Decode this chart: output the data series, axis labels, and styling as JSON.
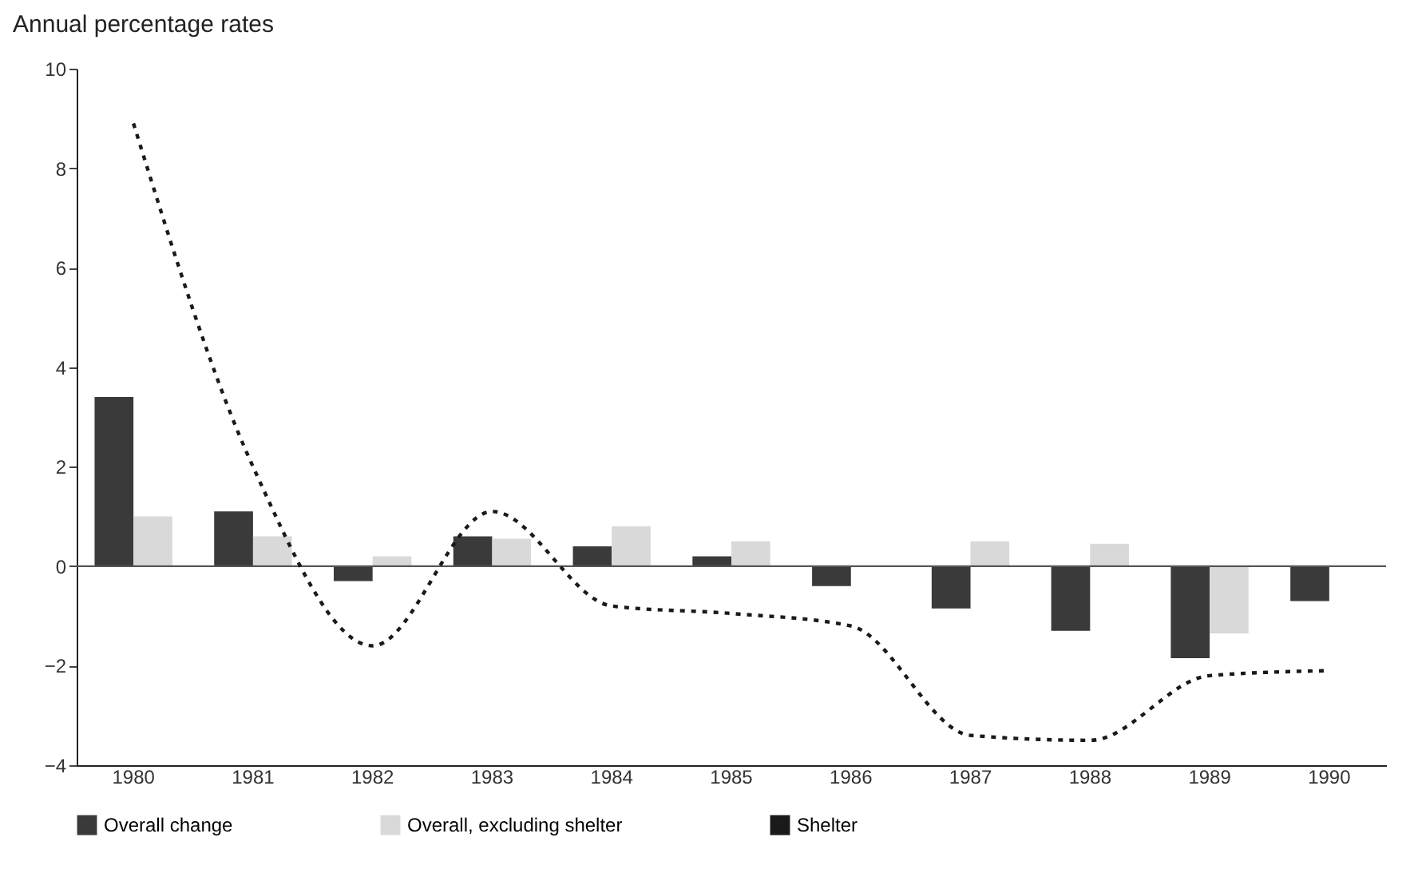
{
  "chart_data": {
    "type": "bar",
    "title": "Annual percentage rates",
    "categories": [
      "1980",
      "1981",
      "1982",
      "1983",
      "1984",
      "1985",
      "1986",
      "1987",
      "1988",
      "1989",
      "1990"
    ],
    "series": [
      {
        "name": "Overall change",
        "color": "#3a3a3a",
        "values": [
          3.4,
          1.1,
          -0.3,
          0.6,
          0.4,
          0.2,
          -0.4,
          -0.85,
          -1.3,
          -1.85,
          -0.7
        ]
      },
      {
        "name": "Overall, excluding shelter",
        "color": "#d9d9d9",
        "values": [
          1.0,
          0.6,
          0.2,
          0.55,
          0.8,
          0.5,
          0.0,
          0.5,
          0.45,
          -1.35,
          0.0
        ]
      },
      {
        "name": "Shelter",
        "type": "line",
        "color": "#1a1a1a",
        "line_style": "dotted",
        "values": [
          8.9,
          2.0,
          -1.6,
          1.1,
          -0.8,
          -0.95,
          -1.2,
          -3.4,
          -3.5,
          -2.2,
          -2.1
        ]
      }
    ],
    "ylim": [
      -4,
      10
    ],
    "yticks": [
      -4,
      -2,
      0,
      2,
      4,
      6,
      8,
      10
    ],
    "ref_lines": [
      {
        "axis": "y",
        "value": 0,
        "color": "#555555"
      }
    ],
    "grid": false,
    "legend": "bottom"
  }
}
